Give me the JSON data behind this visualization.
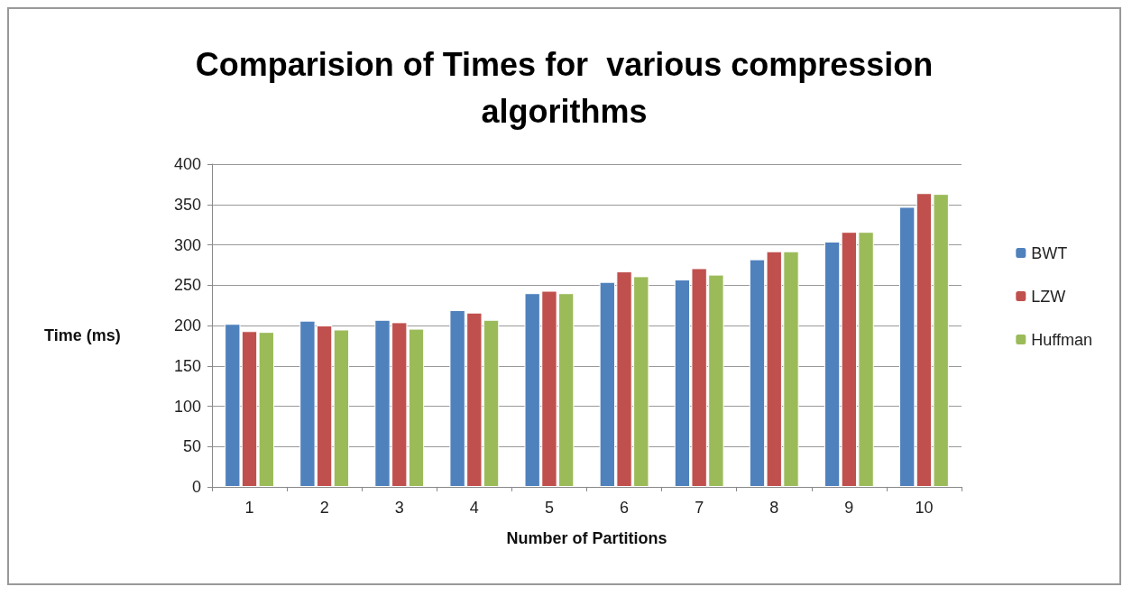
{
  "chart_data": {
    "type": "bar",
    "title": "Comparision of Times for  various compression\nalgorithms",
    "xlabel": "Number of Partitions",
    "ylabel": "Time (ms)",
    "categories": [
      "1",
      "2",
      "3",
      "4",
      "5",
      "6",
      "7",
      "8",
      "9",
      "10"
    ],
    "series": [
      {
        "name": "BWT",
        "color": "#4f81bd",
        "values": [
          202,
          206,
          207,
          219,
          240,
          254,
          257,
          282,
          304,
          347
        ]
      },
      {
        "name": "LZW",
        "color": "#c0504d",
        "values": [
          193,
          200,
          204,
          216,
          243,
          267,
          271,
          292,
          316,
          364
        ]
      },
      {
        "name": "Huffman",
        "color": "#9bbb59",
        "values": [
          192,
          195,
          196,
          207,
          240,
          261,
          263,
          292,
          316,
          363
        ]
      }
    ],
    "ylim": [
      0,
      400
    ],
    "yticks": [
      0,
      50,
      100,
      150,
      200,
      250,
      300,
      350,
      400
    ],
    "grid": "y",
    "legend": "right"
  }
}
